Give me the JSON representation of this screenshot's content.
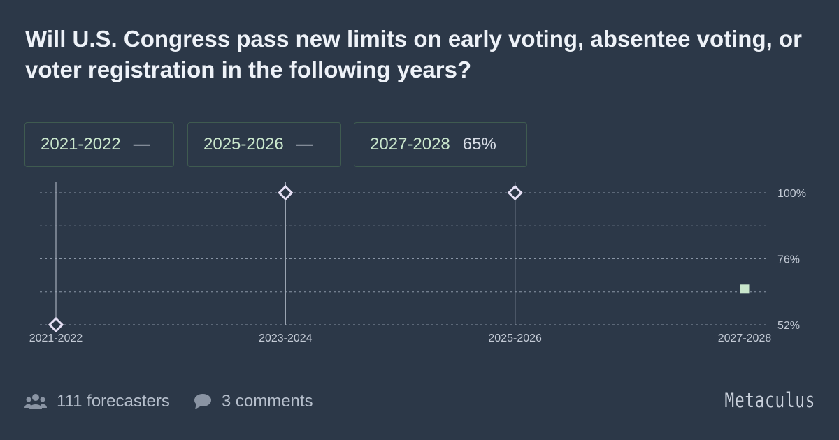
{
  "title": "Will U.S. Congress pass new limits on early voting, absentee voting, or voter registration in the following years?",
  "legend": [
    {
      "label": "2021-2022",
      "value": "—"
    },
    {
      "label": "2025-2026",
      "value": "—"
    },
    {
      "label": "2027-2028",
      "value": "65%"
    }
  ],
  "footer": {
    "forecasters": "111 forecasters",
    "comments": "3 comments",
    "brand": "Metaculus",
    "forecasters_icon": "users-icon",
    "comments_icon": "speech-bubble-icon"
  },
  "colors": {
    "background": "#2c3848",
    "resolved_marker": "#e6e0f5",
    "open_marker": "#c9e6cc",
    "grid": "#8a96a6"
  },
  "chart_data": {
    "type": "scatter",
    "categories": [
      "2021-2022",
      "2023-2024",
      "2025-2026",
      "2027-2028"
    ],
    "points": [
      {
        "category": "2021-2022",
        "value": 52,
        "marker": "diamond",
        "stem": true
      },
      {
        "category": "2023-2024",
        "value": 100,
        "marker": "diamond",
        "stem": true
      },
      {
        "category": "2025-2026",
        "value": 100,
        "marker": "diamond",
        "stem": true
      },
      {
        "category": "2027-2028",
        "value": 65,
        "marker": "square",
        "stem": false
      }
    ],
    "y_ticks": [
      "100%",
      "76%",
      "52%"
    ],
    "y_tick_values": [
      100,
      76,
      52
    ],
    "ylim": [
      52,
      100
    ],
    "grid": true
  }
}
